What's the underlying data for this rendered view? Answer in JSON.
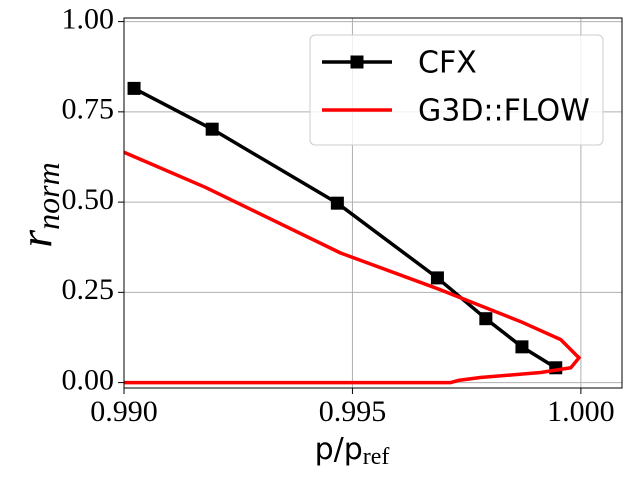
{
  "chart_data": {
    "type": "line",
    "xlabel": {
      "main": "p/p",
      "sub": "ref"
    },
    "ylabel": {
      "main": "r",
      "sub": "norm"
    },
    "xlim": [
      0.99,
      1.0009
    ],
    "ylim": [
      -0.015,
      1.01
    ],
    "xticks": [
      {
        "value": 0.99,
        "label": "0.990"
      },
      {
        "value": 0.995,
        "label": "0.995"
      },
      {
        "value": 1.0,
        "label": "1.000"
      }
    ],
    "yticks": [
      {
        "value": 0,
        "label": "0.00"
      },
      {
        "value": 0.25,
        "label": "0.25"
      },
      {
        "value": 0.5,
        "label": "0.50"
      },
      {
        "value": 0.75,
        "label": "0.75"
      },
      {
        "value": 1.0,
        "label": "1.00"
      }
    ],
    "grid": true,
    "legend": "upper right",
    "series": [
      {
        "name": "CFX",
        "color": "#000000",
        "marker": "square",
        "x": [
          0.99022,
          0.99193,
          0.99467,
          0.99686,
          0.99792,
          0.99871,
          0.99945
        ],
        "values": [
          0.815,
          0.702,
          0.497,
          0.29,
          0.177,
          0.099,
          0.041
        ]
      },
      {
        "name": "G3D::FLOW",
        "color": "#ff0000",
        "x": [
          0.99,
          0.99178,
          0.99474,
          0.99693,
          0.99868,
          0.99956,
          0.99989,
          0.99996,
          0.99978,
          0.99912,
          0.9978,
          0.99732,
          0.99715,
          0.99
        ],
        "values": [
          0.638,
          0.541,
          0.359,
          0.257,
          0.169,
          0.119,
          0.077,
          0.069,
          0.041,
          0.028,
          0.014,
          0.006,
          0,
          0
        ]
      }
    ]
  }
}
